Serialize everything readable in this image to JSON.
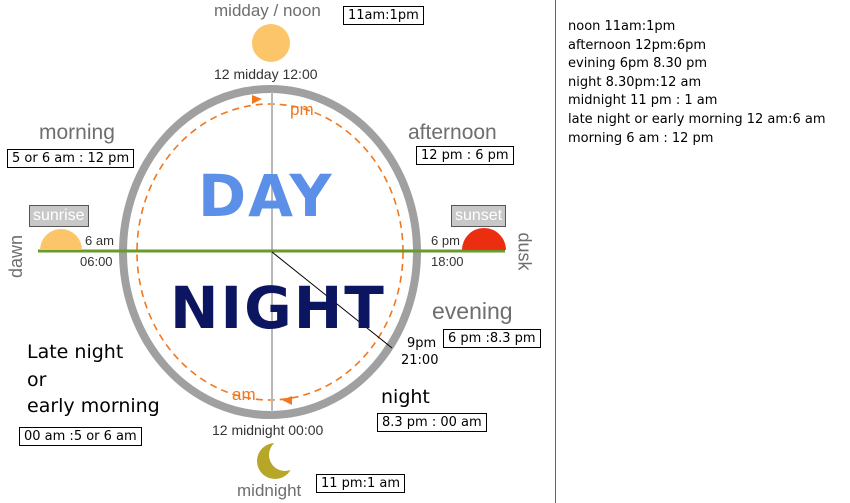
{
  "clock": {
    "day_word": "DAY",
    "night_word": "NIGHT",
    "pm_label": "pm",
    "am_label": "am",
    "top_label": "midday / noon",
    "top_time": "12 midday 12:00",
    "bottom_time": "12 midnight 00:00",
    "bottom_label": "midnight",
    "left_time": "6 am",
    "left_time24": "06:00",
    "right_time": "6 pm",
    "right_time24": "18:00",
    "nine_time": "9pm",
    "nine_time24": "21:00",
    "dawn": "dawn",
    "dusk": "dusk",
    "sunrise": "sunrise",
    "sunset": "sunset"
  },
  "periods": {
    "morning": {
      "label": "morning",
      "range": "5 or 6 am : 12 pm"
    },
    "afternoon": {
      "label": "afternoon",
      "range": "12 pm : 6 pm"
    },
    "evening": {
      "label": "evening",
      "range": "6 pm :8.3 pm"
    },
    "night": {
      "label": "night",
      "range": "8.3 pm : 00 am"
    },
    "late_night": {
      "line1": "Late night",
      "line2": "or",
      "line3": "early morning",
      "range": "00 am :5 or 6 am"
    },
    "noon_range": "11am:1pm",
    "midnight_range": "11 pm:1 am"
  },
  "legend": [
    "noon  11am:1pm",
    "afternoon 12pm:6pm",
    "evining   6pm 8.30 pm",
    "night   8.30pm:12 am",
    "midnight 11 pm : 1 am",
    "late night or early morning 12 am:6 am",
    "morning 6 am : 12 pm"
  ],
  "colors": {
    "ring": "#a0a0a0",
    "horizon": "#6a9a2a",
    "day_text": "#5b8fe8",
    "night_text": "#0c1660",
    "arc_orange": "#f07820",
    "sun": "#fcc56a",
    "sunset": "#ec2e10",
    "moon": "#b8a628"
  }
}
